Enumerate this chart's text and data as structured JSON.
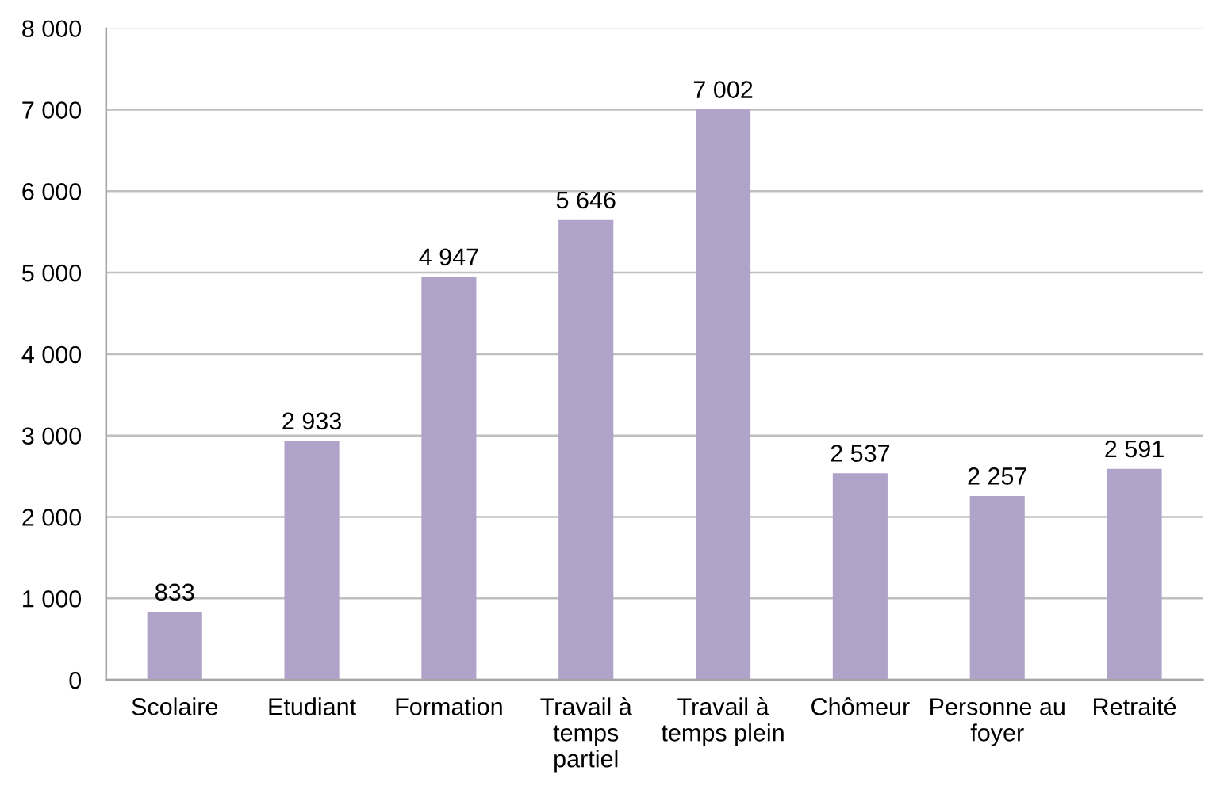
{
  "chart_data": {
    "type": "bar",
    "categories": [
      "Scolaire",
      "Etudiant",
      "Formation",
      "Travail à temps partiel",
      "Travail à temps plein",
      "Chômeur",
      "Personne au foyer",
      "Retraité"
    ],
    "values": [
      833,
      2933,
      4947,
      5646,
      7002,
      2537,
      2257,
      2591
    ],
    "value_labels": [
      "833",
      "2 933",
      "4 947",
      "5 646",
      "7 002",
      "2 537",
      "2 257",
      "2 591"
    ],
    "color": "#b0a3c9",
    "ylim": [
      0,
      8000
    ],
    "yticks": [
      {
        "value": 0,
        "label": "0"
      },
      {
        "value": 1000,
        "label": "1 000"
      },
      {
        "value": 2000,
        "label": "2 000"
      },
      {
        "value": 3000,
        "label": "3 000"
      },
      {
        "value": 4000,
        "label": "4 000"
      },
      {
        "value": 5000,
        "label": "5 000"
      },
      {
        "value": 6000,
        "label": "6 000"
      },
      {
        "value": 7000,
        "label": "7 000"
      },
      {
        "value": 8000,
        "label": "8 000"
      }
    ],
    "grid": "y"
  }
}
